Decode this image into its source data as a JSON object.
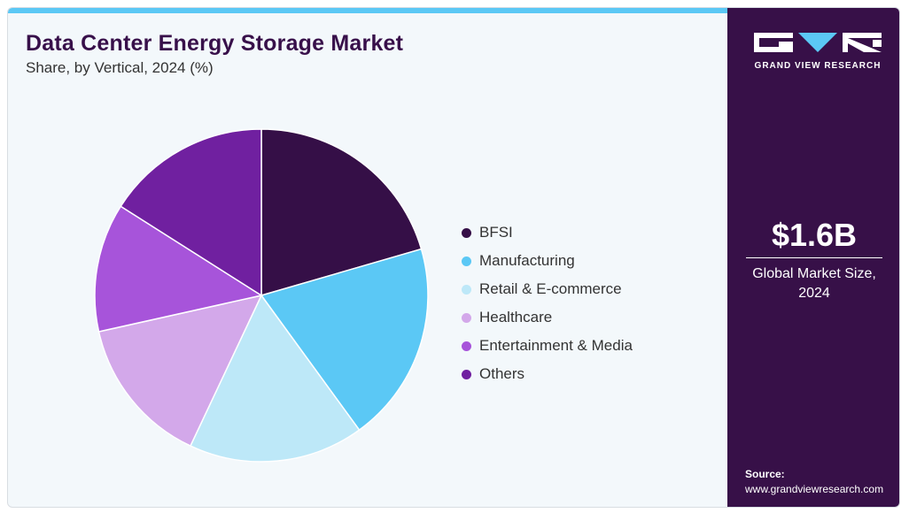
{
  "header": {
    "title": "Data Center Energy Storage Market",
    "subtitle": "Share, by Vertical, 2024 (%)"
  },
  "colors": {
    "accent": "#5bc8f5",
    "panel": "#371048",
    "title": "#38104a"
  },
  "chart_data": {
    "type": "pie",
    "title": "Data Center Energy Storage Market",
    "subtitle": "Share, by Vertical, 2024 (%)",
    "legend_position": "right",
    "slices": [
      {
        "label": "BFSI",
        "value": 20.5,
        "color": "#350f47"
      },
      {
        "label": "Manufacturing",
        "value": 19.5,
        "color": "#5bc8f5"
      },
      {
        "label": "Retail & E-commerce",
        "value": 17.0,
        "color": "#bde8f8"
      },
      {
        "label": "Healthcare",
        "value": 14.5,
        "color": "#d3a8ea"
      },
      {
        "label": "Entertainment & Media",
        "value": 12.5,
        "color": "#a754da"
      },
      {
        "label": "Others",
        "value": 16.0,
        "color": "#7020a0"
      }
    ]
  },
  "side_panel": {
    "logo_text": "GRAND VIEW RESEARCH",
    "market_value": "$1.6B",
    "market_label": "Global Market Size, 2024",
    "source_title": "Source:",
    "source_url": "www.grandviewresearch.com"
  }
}
